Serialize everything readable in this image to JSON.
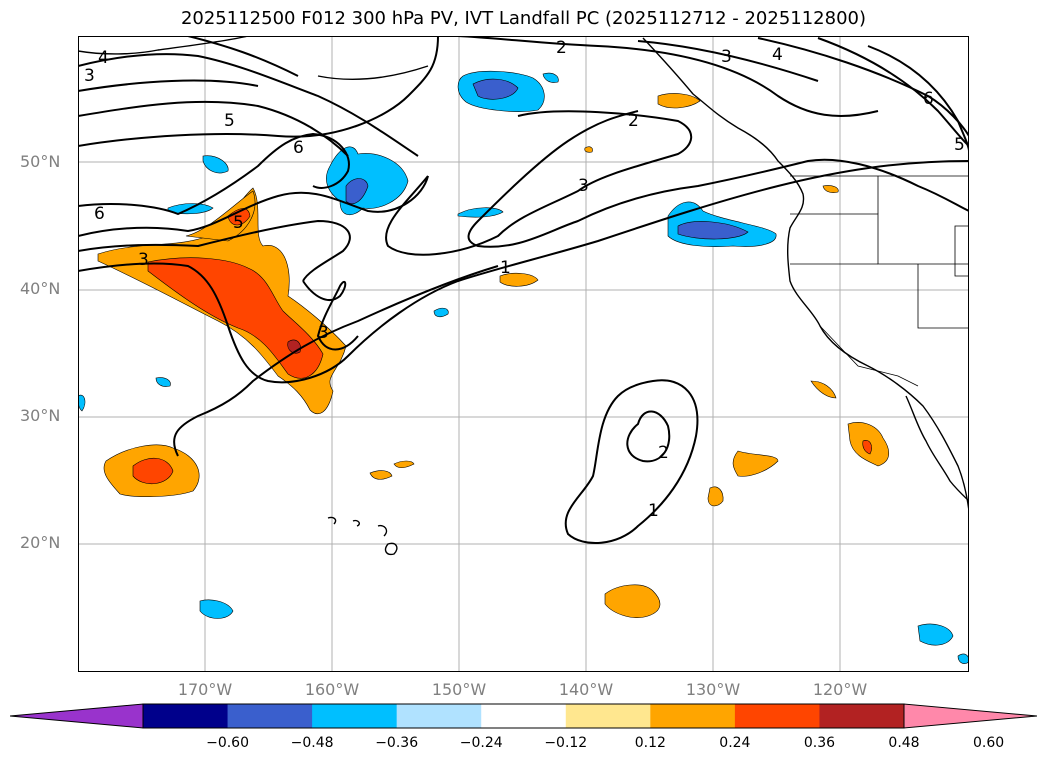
{
  "title": "2025112500 F012 300 hPa PV, IVT Landfall PC (2025112712 - 2025112800)",
  "lat_labels": [
    "50°N",
    "40°N",
    "30°N",
    "20°N"
  ],
  "lon_labels": [
    "170°W",
    "160°W",
    "150°W",
    "140°W",
    "130°W",
    "120°W"
  ],
  "colorbar": {
    "ticks": [
      "−0.60",
      "−0.48",
      "−0.36",
      "−0.24",
      "−0.12",
      "0.12",
      "0.24",
      "0.36",
      "0.48",
      "0.60"
    ],
    "colors": [
      "#9933cc",
      "#00008b",
      "#3a5fcd",
      "#00bfff",
      "#b0e2ff",
      "#ffffff",
      "#ffe78f",
      "#ffa500",
      "#ff4500",
      "#b22222",
      "#ff88aa"
    ],
    "extend": "both"
  },
  "contour_labels": [
    "2",
    "3",
    "4",
    "6",
    "5",
    "3",
    "4",
    "2",
    "3",
    "6",
    "5",
    "3",
    "6",
    "1",
    "3",
    "2",
    "1",
    "5"
  ],
  "colors": {
    "land_outline": "#000000",
    "grid": "#b0b0b0",
    "contour": "#000000"
  }
}
